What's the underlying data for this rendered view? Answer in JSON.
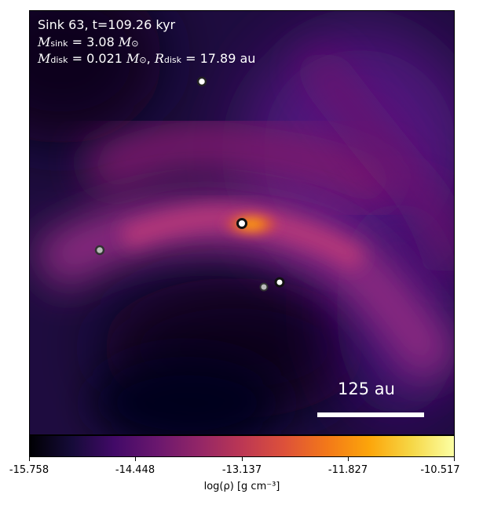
{
  "header": {
    "line1": "Sink 63, t=109.26 kyr",
    "line2_sym": "M",
    "line2_sub": "sink",
    "line2_val": "= 3.08",
    "line2_unit": "M",
    "line2_unit_sub": "⊙",
    "line3_sym": "M",
    "line3_sub": "disk",
    "line3_val": "= 0.021",
    "line3_unit": "M",
    "line3_unit_sub": "⊙",
    "line3_sep": ",",
    "line3_sym2": "R",
    "line3_sub2": "disk",
    "line3_val2": "= 17.89 au"
  },
  "scalebar": {
    "label": "125 au"
  },
  "colorbar": {
    "ticks": [
      "-15.758",
      "-14.448",
      "-13.137",
      "-11.827",
      "-10.517"
    ],
    "label": "log(ρ) [g cm⁻³]",
    "colormap": "inferno"
  },
  "sinks": [
    {
      "id": "top",
      "fill": "#ffffff"
    },
    {
      "id": "center",
      "fill": "#ffffff"
    },
    {
      "id": "left",
      "fill": "#bbbbbb"
    },
    {
      "id": "lower-right-a",
      "fill": "#bbbbbb"
    },
    {
      "id": "lower-right-b",
      "fill": "#ffffff"
    }
  ]
}
